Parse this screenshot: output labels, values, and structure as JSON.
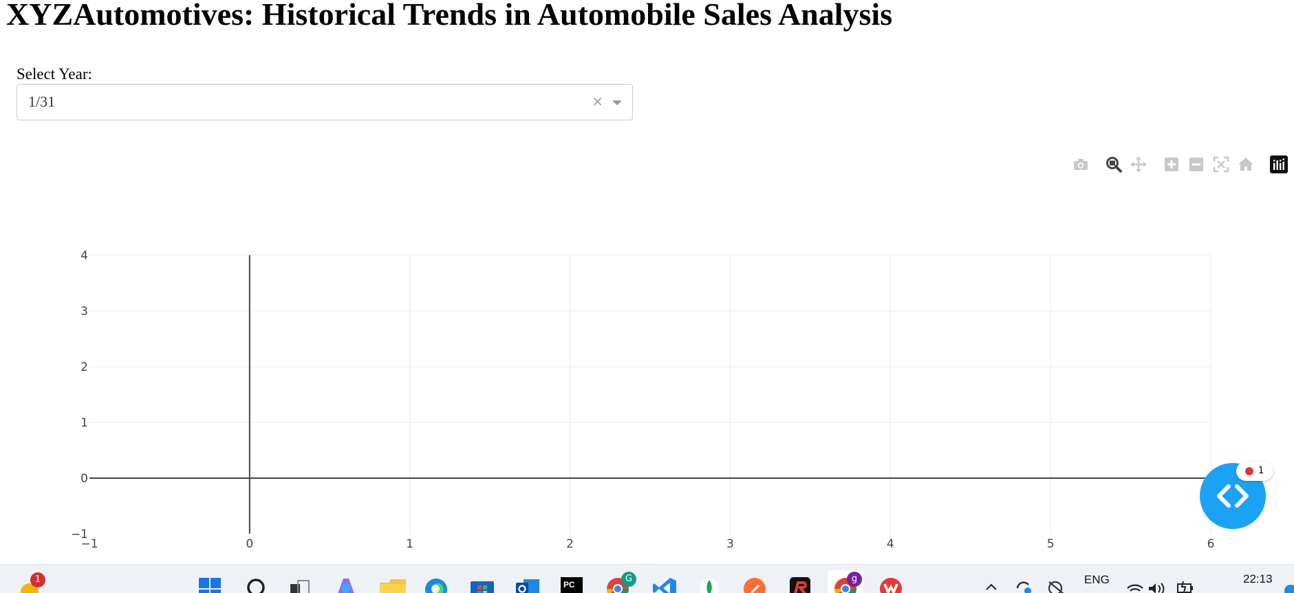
{
  "page": {
    "title": "XYZAutomotives: Historical Trends in Automobile Sales Analysis"
  },
  "controls": {
    "year_label": "Select Year:",
    "year_value": "1/31",
    "clear_symbol": "×"
  },
  "modebar": {
    "icons": [
      "camera-icon",
      "zoom-icon",
      "pan-icon",
      "zoom-in-icon",
      "zoom-out-icon",
      "autoscale-icon",
      "reset-axes-icon",
      "plotly-logo-icon"
    ]
  },
  "chart_data": {
    "type": "line",
    "title": "",
    "xlabel": "",
    "ylabel": "",
    "series": [],
    "xlim": [
      -1,
      6
    ],
    "ylim": [
      -1,
      4
    ],
    "x_ticks": [
      "−1",
      "0",
      "1",
      "2",
      "3",
      "4",
      "5",
      "6"
    ],
    "y_ticks": [
      "4",
      "3",
      "2",
      "1",
      "0",
      "−1"
    ],
    "grid": true,
    "zero_lines": true
  },
  "floating": {
    "recording_count": "1",
    "icon": "code-brackets-icon",
    "color": "#1aa3f5"
  },
  "taskbar": {
    "notification_count": "1",
    "language": "ENG",
    "time": "22:13",
    "profile_letter_1": "G",
    "profile_letter_2": "g",
    "pc_label": "PC",
    "icons": [
      "widgets-icon",
      "start-icon",
      "search-icon",
      "task-view-icon",
      "copilot-icon",
      "file-explorer-icon",
      "edge-icon",
      "store-icon",
      "outlook-icon",
      "pycharm-icon",
      "chrome-icon",
      "vscode-icon",
      "mongodb-icon",
      "postman-icon",
      "app-icon",
      "chrome-profile-icon",
      "wps-icon",
      "chevron-up-icon",
      "sync-icon",
      "antivirus-icon",
      "wifi-icon",
      "volume-icon",
      "battery-icon"
    ]
  }
}
